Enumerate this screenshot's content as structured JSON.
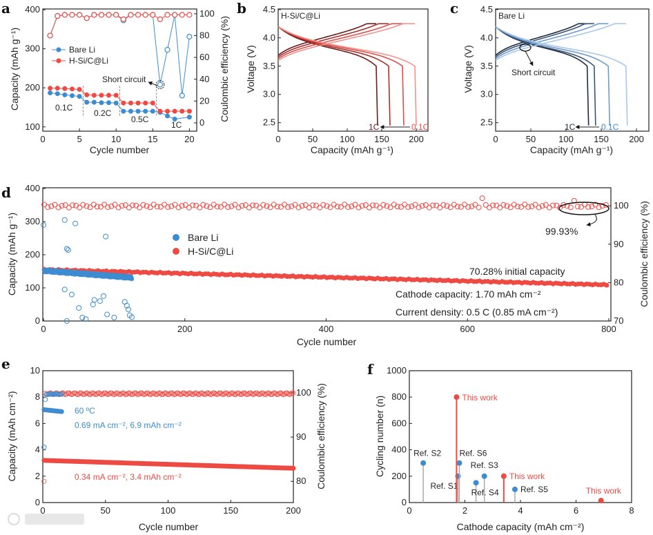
{
  "colors": {
    "red": "#ee4a44",
    "blue": "#3d8cd0",
    "b_curves": [
      "#6e1a1a",
      "#a8302c",
      "#de4f49",
      "#f3928c"
    ],
    "c_curves": [
      "#1d2b40",
      "#3a5478",
      "#6d9bcc",
      "#a8c7e8"
    ]
  },
  "watermark": "大数跨境",
  "chart_data": {
    "a": {
      "type": "line",
      "letter": "a",
      "xlabel": "Cycle number",
      "ylabel": "Capacity (mAh g⁻¹)",
      "y2label": "Coulombic efficiency (%)",
      "xlim": [
        0,
        21
      ],
      "ylim": [
        89,
        402
      ],
      "y2lim": [
        -7.6,
        104.4
      ],
      "xticks": [
        0,
        5,
        10,
        15,
        20
      ],
      "yticks": [
        100,
        200,
        300,
        400
      ],
      "y2ticks": [
        0,
        20,
        40,
        60,
        80,
        100
      ],
      "legend": [
        "Bare Li",
        "H-Si/C@Li"
      ],
      "rate_labels": [
        "0.1C",
        "0.2C",
        "0.5C",
        "1C"
      ],
      "rate_boundaries": [
        5.5,
        10.5,
        15.5
      ],
      "short_circuit_label": "Short circuit",
      "cycles": [
        1,
        2,
        3,
        4,
        5,
        6,
        7,
        8,
        9,
        10,
        11,
        12,
        13,
        14,
        15,
        16,
        17,
        18,
        19,
        20
      ],
      "series": [
        {
          "name": "Bare Li",
          "capacity": [
            187,
            185,
            182,
            180,
            178,
            163,
            163,
            162,
            162,
            161,
            140,
            140,
            140,
            140,
            140,
            137,
            128,
            120,
            null,
            125
          ],
          "ce": [
            80,
            98,
            99,
            99,
            99,
            96,
            99,
            99,
            99,
            99,
            94,
            99,
            99,
            99,
            99,
            35,
            67,
            99,
            25,
            79
          ]
        },
        {
          "name": "H-Si/C@Li",
          "capacity": [
            199,
            199,
            198,
            197,
            196,
            182,
            181,
            181,
            181,
            181,
            161,
            161,
            161,
            161,
            161,
            140,
            140,
            140,
            140,
            140
          ],
          "ce": [
            80,
            98,
            99,
            99,
            99,
            96,
            99,
            99,
            99,
            99,
            95,
            99,
            99,
            99,
            99,
            95,
            99,
            99,
            99,
            99
          ]
        }
      ]
    },
    "b": {
      "type": "line",
      "letter": "b",
      "label": "H-Si/C@Li",
      "xlabel": "Capacity (mAh g⁻¹)",
      "ylabel": "Voltage (V)",
      "xlim": [
        0,
        217
      ],
      "ylim": [
        2.35,
        4.51
      ],
      "xticks": [
        0,
        50,
        100,
        150,
        200
      ],
      "yticks": [
        2.5,
        3.0,
        3.5,
        4.0,
        4.5
      ],
      "rates": [
        "1C",
        "0.5C",
        "0.2C",
        "0.1C"
      ],
      "discharge_capacity": [
        142,
        160,
        180,
        198
      ],
      "rate_arrow": [
        "1C",
        "0.1C"
      ]
    },
    "c": {
      "type": "line",
      "letter": "c",
      "label": "Bare Li",
      "xlabel": "Capacity (mAh g⁻¹)",
      "ylabel": "Voltage (V)",
      "xlim": [
        0,
        217.6
      ],
      "ylim": [
        2.35,
        4.51
      ],
      "xticks": [
        0,
        50,
        100,
        150,
        200
      ],
      "yticks": [
        2.5,
        3.0,
        3.5,
        4.0,
        4.5
      ],
      "rates": [
        "1C",
        "0.5C",
        "0.2C",
        "0.1C"
      ],
      "discharge_capacity": [
        130,
        140,
        160,
        185
      ],
      "rate_arrow": [
        "1C",
        "0.1C"
      ],
      "short_circuit_label": "Short circuit"
    },
    "d": {
      "type": "scatter",
      "letter": "d",
      "xlabel": "Cycle number",
      "ylabel": "Capacity (mAh g⁻¹)",
      "y2label": "Coulombic efficiency (%)",
      "xlim": [
        -1,
        803
      ],
      "ylim": [
        0,
        402
      ],
      "y2lim": [
        70,
        104.7
      ],
      "xticks": [
        0,
        200,
        400,
        600,
        800
      ],
      "yticks": [
        0,
        100,
        200,
        300,
        400
      ],
      "y2ticks": [
        70,
        80,
        90,
        100
      ],
      "legend": [
        "Bare Li",
        "H-Si/C@Li"
      ],
      "ce_label": "99.93%",
      "retention_label": "70.28% initial capacity",
      "cathode_label": "Cathode capacity: 1.70 mAh cm⁻²",
      "current_label": "Current density: 0.5 C (0.85 mA cm⁻²)",
      "series": [
        {
          "name": "H-Si/C@Li",
          "cycles": 800,
          "capacity_start": 155,
          "capacity_end": 109,
          "ce": 99.93
        },
        {
          "name": "Bare Li",
          "cycles": 125,
          "capacity_start": 152,
          "capacity_end": 131,
          "ce_points": [
            [
              30,
              96.3
            ],
            [
              45,
              95.4
            ],
            [
              35,
              88.5
            ],
            [
              33,
              88.8
            ],
            [
              88,
              92
            ],
            [
              30,
              78.2
            ],
            [
              40,
              76.9
            ],
            [
              50,
              73.4
            ],
            [
              55,
              70.9
            ],
            [
              60,
              70.5
            ],
            [
              70,
              74.3
            ],
            [
              72,
              75.5
            ],
            [
              80,
              75.2
            ],
            [
              85,
              76.5
            ],
            [
              90,
              71.7
            ],
            [
              100,
              70.9
            ],
            [
              115,
              75
            ],
            [
              118,
              74
            ],
            [
              120,
              73
            ],
            [
              122,
              71.5
            ],
            [
              125,
              71
            ],
            [
              33,
              70
            ],
            [
              0,
              95
            ]
          ]
        }
      ]
    },
    "e": {
      "type": "scatter",
      "letter": "e",
      "xlabel": "Cycle number",
      "ylabel": "Capacity (mAh cm⁻²)",
      "y2label": "Coulombic efficiency (%)",
      "xlim": [
        0,
        200
      ],
      "ylim": [
        0,
        10
      ],
      "y2lim": [
        75.2,
        105
      ],
      "xticks": [
        0,
        50,
        100,
        150,
        200
      ],
      "yticks": [
        0,
        2,
        4,
        6,
        8,
        10
      ],
      "y2ticks": [
        80,
        90,
        100
      ],
      "blue_temp_label": "60 ºC",
      "blue_label": "0.69 mA cm⁻², 6.9 mAh cm⁻²",
      "red_label": "0.34 mA cm⁻², 3.4 mAh cm⁻²",
      "series": [
        {
          "name": "0.69 mA cm⁻², 6.9 mAh cm⁻² (60 ºC)",
          "cycles": 15,
          "capacity_start": 7.05,
          "capacity_end": 6.9,
          "ce_first": 87.7,
          "ce": 99.7
        },
        {
          "name": "0.34 mA cm⁻², 3.4 mAh cm⁻²",
          "cycles": 200,
          "capacity_start": 3.2,
          "capacity_end": 2.6,
          "ce_first": 80,
          "ce": 99.8
        }
      ]
    },
    "f": {
      "type": "scatter",
      "letter": "f",
      "xlabel": "Cathode capacity (mAh cm⁻²)",
      "ylabel": "Cycling number (n)",
      "xlim": [
        0,
        8
      ],
      "ylim": [
        0,
        1000
      ],
      "xticks": [
        0,
        2,
        4,
        6,
        8
      ],
      "yticks": [
        0,
        200,
        400,
        600,
        800,
        1000
      ],
      "points": [
        {
          "label": "Ref. S2",
          "x": 0.5,
          "y": 300,
          "ours": false
        },
        {
          "label": "Ref. S1",
          "x": 1.75,
          "y": 200,
          "ours": false
        },
        {
          "label": "Ref. S6",
          "x": 1.8,
          "y": 300,
          "ours": false
        },
        {
          "label": "Ref. S4",
          "x": 2.4,
          "y": 150,
          "ours": false
        },
        {
          "label": "Ref. S3",
          "x": 2.7,
          "y": 200,
          "ours": false
        },
        {
          "label": "Ref. S5",
          "x": 3.8,
          "y": 100,
          "ours": false
        },
        {
          "label": "This work",
          "x": 1.7,
          "y": 800,
          "ours": true
        },
        {
          "label": "This work",
          "x": 3.4,
          "y": 200,
          "ours": true
        },
        {
          "label": "This work",
          "x": 6.9,
          "y": 15,
          "ours": true
        }
      ]
    }
  }
}
